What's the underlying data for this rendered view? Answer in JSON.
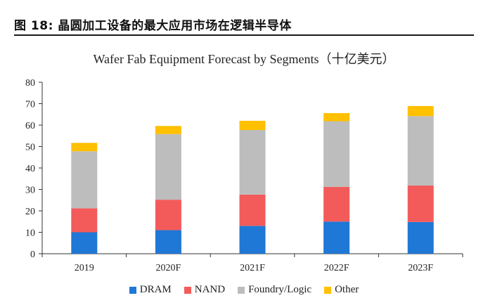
{
  "figure": {
    "label": "图 18: 晶圆加工设备的最大应用市场在逻辑半导体"
  },
  "chart_data": {
    "type": "bar",
    "stacked": true,
    "title": "Wafer Fab Equipment Forecast by Segments（十亿美元）",
    "xlabel": "",
    "ylabel": "",
    "categories": [
      "2019",
      "2020F",
      "2021F",
      "2022F",
      "2023F"
    ],
    "ylim": [
      0,
      80
    ],
    "yticks": [
      "0",
      "10",
      "20",
      "30",
      "40",
      "50",
      "60",
      "70",
      "80"
    ],
    "grid": false,
    "legend_position": "bottom",
    "series": [
      {
        "name": "DRAM",
        "color": "#1F77D6",
        "values": [
          10,
          11,
          13,
          15,
          14.8
        ]
      },
      {
        "name": "NAND",
        "color": "#F35B5B",
        "values": [
          11.2,
          14.2,
          14.6,
          16.2,
          17
        ]
      },
      {
        "name": "Foundry/Logic",
        "color": "#BDBDBD",
        "values": [
          26.6,
          30.6,
          30.1,
          30.6,
          32.4
        ]
      },
      {
        "name": "Other",
        "color": "#FFC000",
        "values": [
          3.9,
          3.8,
          4.3,
          3.8,
          4.7
        ]
      }
    ]
  }
}
